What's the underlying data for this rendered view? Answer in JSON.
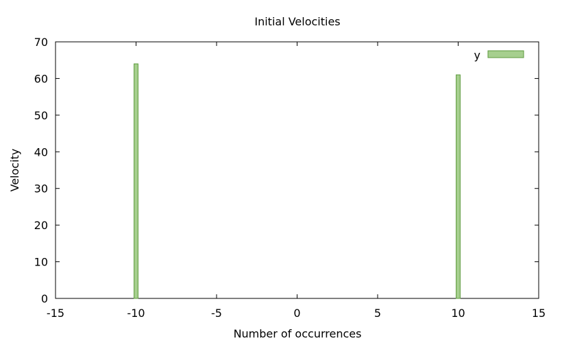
{
  "chart_data": {
    "type": "bar",
    "title": "Initial Velocities",
    "xlabel": "Number of occurrences",
    "ylabel": "Velocity",
    "xlim": [
      -15,
      15
    ],
    "ylim": [
      0,
      70
    ],
    "xticks": [
      -15,
      -10,
      -5,
      0,
      5,
      10,
      15
    ],
    "yticks": [
      0,
      10,
      20,
      30,
      40,
      50,
      60,
      70
    ],
    "bar_width": 0.25,
    "grid": false,
    "legend_position": "top-right",
    "series": [
      {
        "name": "y",
        "color": "#a6cf8e",
        "edge_color": "#5c9a3c",
        "x": [
          -10,
          10
        ],
        "values": [
          64,
          61
        ]
      }
    ]
  }
}
